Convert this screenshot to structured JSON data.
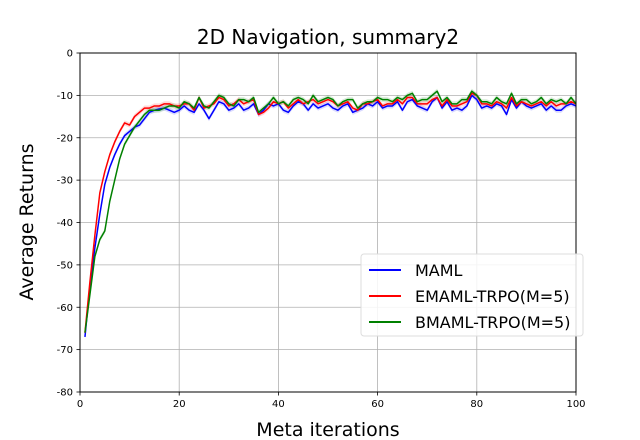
{
  "chart_data": {
    "type": "line",
    "title": "2D Navigation, summary2",
    "xlabel": "Meta iterations",
    "ylabel": "Average Returns",
    "xlim": [
      0,
      100
    ],
    "ylim": [
      -80,
      0
    ],
    "xticks": [
      0,
      20,
      40,
      60,
      80,
      100
    ],
    "yticks": [
      0,
      -10,
      -20,
      -30,
      -40,
      -50,
      -60,
      -70,
      -80
    ],
    "grid": true,
    "legend_position": "lower-right",
    "x": [
      1,
      2,
      3,
      4,
      5,
      6,
      7,
      8,
      9,
      10,
      11,
      12,
      13,
      14,
      15,
      16,
      17,
      18,
      19,
      20,
      21,
      22,
      23,
      24,
      25,
      26,
      27,
      28,
      29,
      30,
      31,
      32,
      33,
      34,
      35,
      36,
      37,
      38,
      39,
      40,
      41,
      42,
      43,
      44,
      45,
      46,
      47,
      48,
      49,
      50,
      51,
      52,
      53,
      54,
      55,
      56,
      57,
      58,
      59,
      60,
      61,
      62,
      63,
      64,
      65,
      66,
      67,
      68,
      69,
      70,
      71,
      72,
      73,
      74,
      75,
      76,
      77,
      78,
      79,
      80,
      81,
      82,
      83,
      84,
      85,
      86,
      87,
      88,
      89,
      90,
      91,
      92,
      93,
      94,
      95,
      96,
      97,
      98,
      99,
      100
    ],
    "series": [
      {
        "name": "MAML",
        "color": "#0000ff",
        "values": [
          -67,
          -55,
          -46,
          -38,
          -31,
          -27,
          -24,
          -21.5,
          -19.5,
          -18.5,
          -17.5,
          -17,
          -15.5,
          -14,
          -13.5,
          -13.2,
          -13,
          -13.5,
          -14,
          -13.5,
          -12.5,
          -13.5,
          -14,
          -12,
          -13.5,
          -15.5,
          -13.5,
          -11.5,
          -12,
          -13.5,
          -13,
          -12,
          -13.5,
          -13,
          -12,
          -14.5,
          -13.5,
          -12,
          -12.5,
          -12,
          -13.5,
          -14,
          -12.5,
          -11.5,
          -12,
          -13.5,
          -12,
          -13,
          -12.5,
          -12,
          -13,
          -13.5,
          -12.5,
          -12,
          -14,
          -13.5,
          -13,
          -12,
          -12.5,
          -11.5,
          -13,
          -12.5,
          -12.5,
          -11.5,
          -13.5,
          -11.5,
          -11,
          -12.5,
          -13,
          -13.5,
          -11.5,
          -10.5,
          -13,
          -11.5,
          -13.5,
          -13,
          -13.5,
          -12.5,
          -10,
          -11,
          -13,
          -12.5,
          -13,
          -12,
          -12.5,
          -14.5,
          -11,
          -13,
          -11.5,
          -12.5,
          -13,
          -12.5,
          -12,
          -13.5,
          -12.5,
          -13.5,
          -13.5,
          -12.5,
          -12,
          -12.5
        ]
      },
      {
        "name": "EMAML-TRPO(M=5)",
        "color": "#ff0000",
        "values": [
          -66,
          -54,
          -43,
          -33,
          -28,
          -24,
          -21,
          -18.5,
          -16.5,
          -17,
          -15,
          -14,
          -13,
          -13,
          -12.5,
          -12.5,
          -12,
          -12,
          -12.5,
          -12.5,
          -12,
          -12,
          -13.5,
          -10.5,
          -13,
          -12.5,
          -12,
          -10.5,
          -11,
          -12.5,
          -12,
          -11,
          -12,
          -11.5,
          -11,
          -14.5,
          -14,
          -13,
          -11.5,
          -12,
          -11.5,
          -13,
          -12,
          -11,
          -12,
          -11.5,
          -11,
          -12,
          -11.5,
          -11,
          -11.5,
          -12.5,
          -12,
          -11.5,
          -13,
          -13.5,
          -12,
          -12,
          -11.5,
          -11,
          -12.5,
          -12,
          -12,
          -11,
          -12,
          -10.5,
          -10.5,
          -12,
          -12,
          -12,
          -11,
          -10.5,
          -12.5,
          -11,
          -12.5,
          -12.5,
          -12,
          -11.5,
          -9.5,
          -10,
          -12,
          -12,
          -12.5,
          -11.5,
          -12,
          -13,
          -10.5,
          -12.5,
          -11.5,
          -12,
          -12.5,
          -12,
          -11.5,
          -12.5,
          -11.5,
          -12.5,
          -12,
          -12,
          -11.5,
          -12
        ]
      },
      {
        "name": "BMAML-TRPO(M=5)",
        "color": "#008000",
        "values": [
          -66,
          -57,
          -48,
          -44,
          -42,
          -35,
          -30,
          -25,
          -21.5,
          -19.5,
          -17.5,
          -16,
          -14.5,
          -13.5,
          -13.5,
          -13.5,
          -13,
          -12.5,
          -12.5,
          -13,
          -11.5,
          -12,
          -13,
          -10.5,
          -12.5,
          -13,
          -11.5,
          -10,
          -10.5,
          -12,
          -12.5,
          -11,
          -11,
          -11.5,
          -10.5,
          -14,
          -13,
          -12,
          -10.5,
          -12,
          -11.5,
          -12.5,
          -11,
          -10.5,
          -11,
          -12,
          -10,
          -11.5,
          -11,
          -10.5,
          -11,
          -12.5,
          -11.5,
          -11,
          -11,
          -13,
          -12,
          -11.5,
          -11.5,
          -10.5,
          -11,
          -11,
          -11.5,
          -10.5,
          -11,
          -10,
          -9.5,
          -11.5,
          -11,
          -11,
          -10,
          -9,
          -11.5,
          -10.5,
          -12,
          -12,
          -11,
          -11,
          -9,
          -10,
          -11.5,
          -11.5,
          -12,
          -10.5,
          -11.5,
          -12,
          -9.5,
          -12,
          -11,
          -11,
          -12,
          -11.5,
          -10.5,
          -12,
          -11,
          -11.5,
          -11,
          -12,
          -10.5,
          -12
        ]
      }
    ]
  }
}
